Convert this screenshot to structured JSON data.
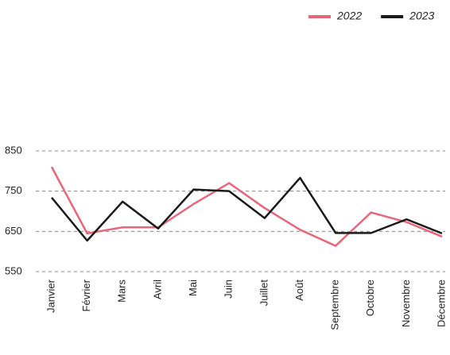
{
  "chart_data": {
    "type": "line",
    "categories": [
      "Janvier",
      "Février",
      "Mars",
      "Avril",
      "Mai",
      "Juin",
      "Juillet",
      "Août",
      "Septembre",
      "Octobre",
      "Novembre",
      "Décembre"
    ],
    "series": [
      {
        "name": "2022",
        "color": "#e8667a",
        "values": [
          810,
          645,
          660,
          660,
          718,
          770,
          708,
          654,
          614,
          697,
          673,
          637
        ]
      },
      {
        "name": "2023",
        "color": "#1a1a1a",
        "values": [
          734,
          627,
          724,
          657,
          754,
          750,
          683,
          783,
          646,
          646,
          680,
          645
        ]
      }
    ],
    "ylim": [
      550,
      850
    ],
    "yticks": [
      550,
      650,
      750,
      850
    ],
    "grid": true,
    "legend": "top-right"
  }
}
